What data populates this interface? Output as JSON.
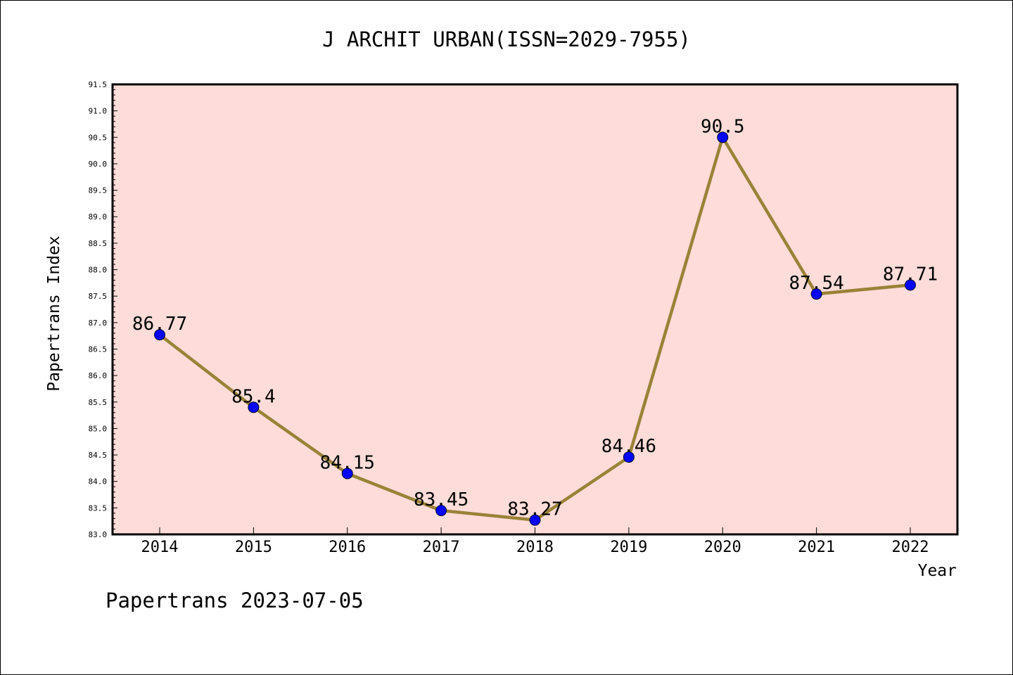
{
  "chart_data": {
    "type": "line",
    "title": "J ARCHIT URBAN(ISSN=2029-7955)",
    "xlabel": "Year",
    "ylabel": "Papertrans Index",
    "categories": [
      "2014",
      "2015",
      "2016",
      "2017",
      "2018",
      "2019",
      "2020",
      "2021",
      "2022"
    ],
    "values": [
      86.77,
      85.4,
      84.15,
      83.45,
      83.27,
      84.46,
      90.5,
      87.54,
      87.71
    ],
    "point_labels": [
      "86.77",
      "85.4",
      "84.15",
      "83.45",
      "83.27",
      "84.46",
      "90.5",
      "87.54",
      "87.71"
    ],
    "ylim": [
      83.0,
      91.5
    ],
    "yticks": [
      "83.0",
      "83.5",
      "84.0",
      "84.5",
      "85.0",
      "85.5",
      "86.0",
      "86.5",
      "87.0",
      "87.5",
      "88.0",
      "88.5",
      "89.0",
      "89.5",
      "90.0",
      "90.5",
      "91.0",
      "91.5"
    ],
    "grid": false,
    "legend": "none",
    "colors": {
      "plot_background": "#fddcd9",
      "line": "#9a8237",
      "marker": "#0000ff",
      "axes": "#000000"
    }
  },
  "footer": "Papertrans 2023-07-05"
}
